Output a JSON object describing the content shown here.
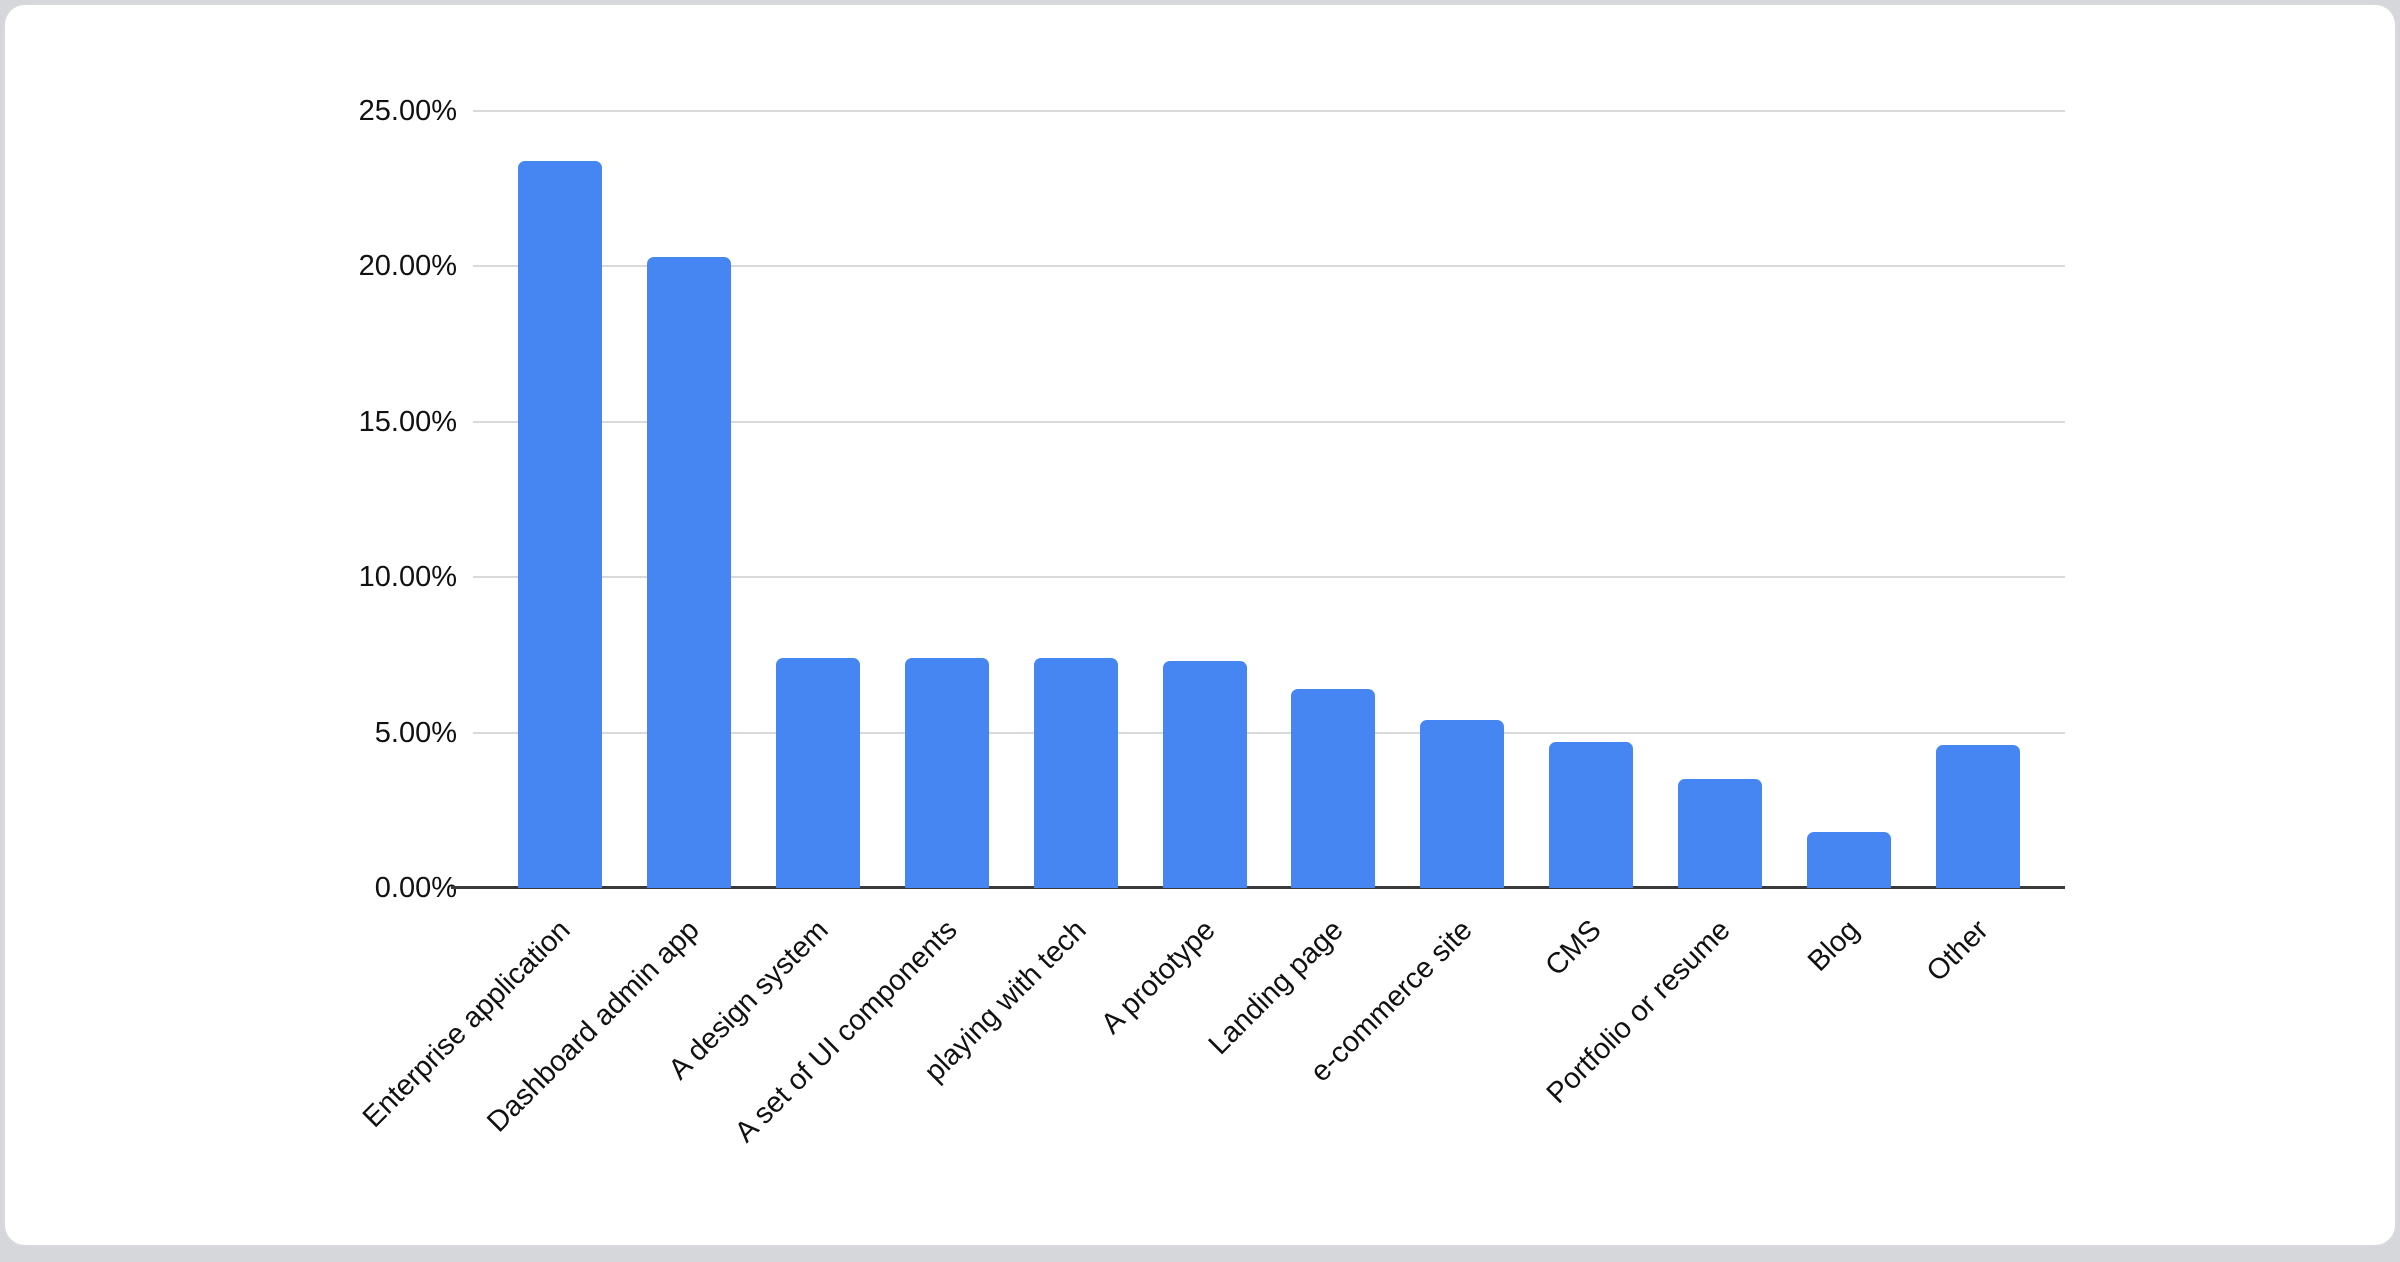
{
  "window": {
    "background_color": "#d5d7da",
    "card_background": "#ffffff",
    "card_border_color": "#d8d9db"
  },
  "chart_data": {
    "type": "bar",
    "title": "",
    "xlabel": "",
    "ylabel": "",
    "legend": "none",
    "grid": true,
    "ylim": [
      0,
      25
    ],
    "y_tick_labels": [
      "25.00%",
      "20.00%",
      "15.00%",
      "10.00%",
      "5.00%",
      "0.00%"
    ],
    "categories": [
      "Enterprise application",
      "Dashboard admin app",
      "A design system",
      "A set of UI components",
      "playing with tech",
      "A prototype",
      "Landing page",
      "e-commerce site",
      "CMS",
      "Portfolio or resume",
      "Blog",
      "Other"
    ],
    "values": [
      23.4,
      20.3,
      7.4,
      7.4,
      7.4,
      7.3,
      6.4,
      5.4,
      4.7,
      3.5,
      1.8,
      4.6
    ],
    "value_format": "percent",
    "bar_color": "#4586f2",
    "gridline_color": "#d9d9d9",
    "axis_line_color": "#3a3a3a",
    "text_color": "#111111"
  }
}
